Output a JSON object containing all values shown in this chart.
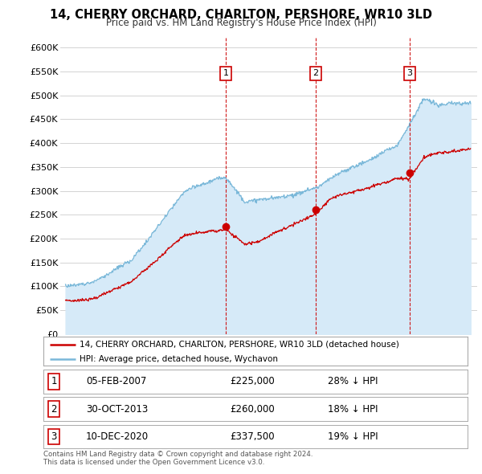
{
  "title": "14, CHERRY ORCHARD, CHARLTON, PERSHORE, WR10 3LD",
  "subtitle": "Price paid vs. HM Land Registry's House Price Index (HPI)",
  "ylim": [
    0,
    620000
  ],
  "yticks": [
    0,
    50000,
    100000,
    150000,
    200000,
    250000,
    300000,
    350000,
    400000,
    450000,
    500000,
    550000,
    600000
  ],
  "ytick_labels": [
    "£0",
    "£50K",
    "£100K",
    "£150K",
    "£200K",
    "£250K",
    "£300K",
    "£350K",
    "£400K",
    "£450K",
    "£500K",
    "£550K",
    "£600K"
  ],
  "hpi_color": "#7ab8d9",
  "hpi_fill_color": "#d6eaf8",
  "sale_color": "#cc0000",
  "vline_color": "#cc0000",
  "grid_color": "#cccccc",
  "bg_color": "#ffffff",
  "sale_points": [
    {
      "date": 2007.08,
      "price": 225000,
      "label": "1"
    },
    {
      "date": 2013.83,
      "price": 260000,
      "label": "2"
    },
    {
      "date": 2020.92,
      "price": 337500,
      "label": "3"
    }
  ],
  "legend_line1": "14, CHERRY ORCHARD, CHARLTON, PERSHORE, WR10 3LD (detached house)",
  "legend_line2": "HPI: Average price, detached house, Wychavon",
  "table_rows": [
    {
      "num": "1",
      "date": "05-FEB-2007",
      "price": "£225,000",
      "pct": "28% ↓ HPI"
    },
    {
      "num": "2",
      "date": "30-OCT-2013",
      "price": "£260,000",
      "pct": "18% ↓ HPI"
    },
    {
      "num": "3",
      "date": "10-DEC-2020",
      "price": "£337,500",
      "pct": "19% ↓ HPI"
    }
  ],
  "footnote": "Contains HM Land Registry data © Crown copyright and database right 2024.\nThis data is licensed under the Open Government Licence v3.0."
}
